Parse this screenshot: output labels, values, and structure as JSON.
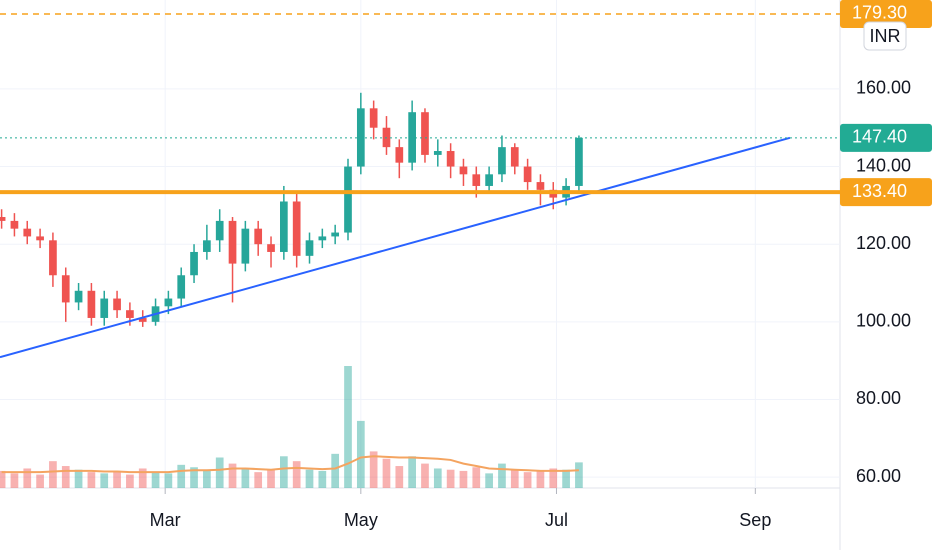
{
  "chart_data": {
    "type": "candlestick",
    "currency": "INR",
    "x": [
      8,
      12,
      16,
      20,
      24,
      28,
      32,
      36,
      40,
      44,
      48,
      52,
      56,
      60,
      64,
      68,
      72,
      76,
      80,
      84,
      88,
      92,
      96,
      100,
      104,
      108,
      112,
      116,
      120,
      124,
      128,
      132,
      136,
      140,
      144,
      148,
      152,
      156,
      160,
      164,
      168,
      172,
      176,
      180,
      184,
      188
    ],
    "open": [
      127,
      126,
      124,
      122,
      121,
      112,
      105,
      108,
      101,
      106,
      103,
      101,
      100,
      104,
      106,
      112,
      118,
      121,
      126,
      115,
      124,
      120,
      118,
      131,
      117,
      121,
      122,
      123,
      140,
      155,
      150,
      145,
      141,
      154,
      143,
      144,
      140,
      138,
      135,
      138,
      145,
      140,
      136,
      134,
      132,
      135
    ],
    "high": [
      129,
      128,
      126,
      124,
      123,
      114,
      110,
      110,
      108,
      108,
      105,
      103,
      106,
      108,
      114,
      120,
      125,
      129,
      127,
      126,
      126,
      122,
      135,
      133,
      123,
      124,
      125,
      142,
      159,
      157,
      153,
      147,
      157,
      155,
      147,
      146,
      142,
      140,
      140,
      148,
      146,
      142,
      138,
      136,
      137,
      148
    ],
    "low": [
      124,
      122,
      120,
      119,
      109,
      100,
      103,
      99,
      99,
      101,
      99,
      98.7,
      99,
      102,
      104,
      110,
      116,
      118,
      105,
      113,
      117,
      114,
      116,
      114,
      115,
      119,
      120,
      121,
      138,
      147,
      143,
      137,
      139,
      141,
      140,
      137,
      135,
      132,
      133,
      136,
      138,
      134,
      130,
      129,
      130,
      133
    ],
    "close": [
      126,
      124,
      122,
      121,
      112,
      105,
      108,
      101,
      106,
      103,
      101,
      100,
      104,
      106,
      112,
      118,
      121,
      126,
      115,
      124,
      120,
      118,
      131,
      117,
      121,
      122,
      123,
      140,
      155,
      150,
      145,
      141,
      154,
      143,
      144,
      140,
      138,
      135,
      138,
      145,
      140,
      136,
      134,
      132,
      135,
      147.4
    ],
    "volume": [
      1.4,
      1.2,
      1.6,
      1.1,
      2.2,
      1.8,
      1.5,
      1.3,
      1.2,
      1.4,
      1.1,
      1.6,
      1.3,
      1.2,
      1.9,
      1.7,
      1.4,
      2.5,
      2.0,
      1.6,
      1.3,
      1.5,
      2.6,
      2.2,
      1.5,
      1.4,
      2.8,
      10,
      5.5,
      3.0,
      2.4,
      1.8,
      2.6,
      2.0,
      1.6,
      1.5,
      1.4,
      1.7,
      1.2,
      2.0,
      1.5,
      1.3,
      1.4,
      1.6,
      1.5,
      2.1
    ],
    "volume_ma": [
      1.3,
      1.3,
      1.3,
      1.3,
      1.35,
      1.4,
      1.4,
      1.4,
      1.35,
      1.35,
      1.3,
      1.3,
      1.3,
      1.3,
      1.4,
      1.45,
      1.45,
      1.5,
      1.6,
      1.6,
      1.55,
      1.5,
      1.6,
      1.65,
      1.6,
      1.55,
      1.6,
      2.0,
      2.5,
      2.6,
      2.55,
      2.5,
      2.5,
      2.45,
      2.4,
      2.3,
      2.0,
      1.8,
      1.6,
      1.55,
      1.5,
      1.45,
      1.4,
      1.4,
      1.4,
      1.45
    ],
    "up_color": "#26a69a",
    "down_color": "#ef5350",
    "ma_color": "#f4a460",
    "xlim": [
      7.5,
      269.4
    ],
    "ylim": [
      57.2,
      182.9
    ],
    "y2lim": [
      0,
      40
    ],
    "xticks": [
      {
        "value": 59,
        "label": "Mar"
      },
      {
        "value": 120,
        "label": "May"
      },
      {
        "value": 181,
        "label": "Jul"
      },
      {
        "value": 243,
        "label": "Sep"
      }
    ],
    "yticks": [
      {
        "value": 60,
        "label": "60.00"
      },
      {
        "value": 80,
        "label": "80.00"
      },
      {
        "value": 100,
        "label": "100.00"
      },
      {
        "value": 120,
        "label": "120.00"
      },
      {
        "value": 140,
        "label": "140.00"
      },
      {
        "value": 160,
        "label": "160.00"
      }
    ],
    "grid": true,
    "levels": [
      {
        "value": 179.3,
        "label": "179.30",
        "color": "#f7a21b",
        "style": "dashed"
      },
      {
        "value": 147.4,
        "label": "147.40",
        "color": "#22ab94",
        "style": "dotted"
      },
      {
        "value": 133.4,
        "label": "133.40",
        "color": "#f7a21b",
        "style": "solid"
      }
    ],
    "trendline": {
      "x": [
        7.5,
        253.8
      ],
      "y": [
        90.9,
        147.4
      ],
      "color": "#2962ff"
    }
  }
}
